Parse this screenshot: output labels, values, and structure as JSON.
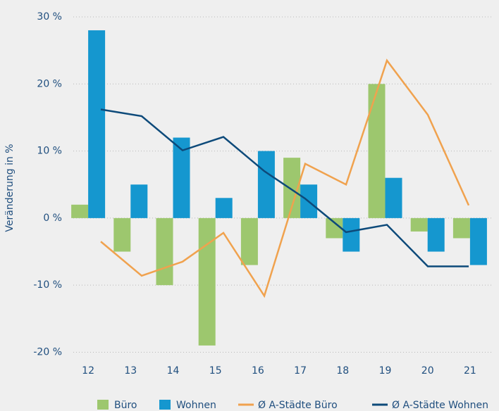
{
  "chart_data": {
    "type": "bar_line",
    "y_label": "Veränderung in %",
    "categories": [
      "12",
      "13",
      "14",
      "15",
      "16",
      "17",
      "18",
      "19",
      "20",
      "21"
    ],
    "series": [
      {
        "name": "Büro",
        "type": "bar",
        "color": "#9dc76e",
        "values": [
          2,
          -5,
          -10,
          -19,
          -7,
          9,
          -3,
          20,
          -2,
          -3
        ]
      },
      {
        "name": "Wohnen",
        "type": "bar",
        "color": "#1597cf",
        "values": [
          28,
          5,
          12,
          3,
          10,
          5,
          -5,
          6,
          -5,
          -7
        ]
      },
      {
        "name": "Ø A-Städte Büro",
        "type": "line",
        "color": "#f0a24e",
        "values": [
          -3.5,
          -8.6,
          -6.5,
          -2.2,
          -11.6,
          8.1,
          5,
          23.5,
          15.4,
          1.9
        ]
      },
      {
        "name": "Ø A-Städte Wohnen",
        "type": "line",
        "color": "#0d4a7a",
        "values": [
          16.2,
          15.2,
          10.1,
          12.1,
          7,
          2.9,
          -2.1,
          -1,
          -7.2,
          -7.2
        ]
      }
    ],
    "ylim": [
      -21,
      30
    ],
    "yticks": [
      {
        "value": -20,
        "label": "-20 %"
      },
      {
        "value": -10,
        "label": "-10 %"
      },
      {
        "value": 0,
        "label": "0 %"
      },
      {
        "value": 10,
        "label": "10 %"
      },
      {
        "value": 20,
        "label": "20 %"
      },
      {
        "value": 30,
        "label": "30 %"
      }
    ],
    "grid": true
  }
}
